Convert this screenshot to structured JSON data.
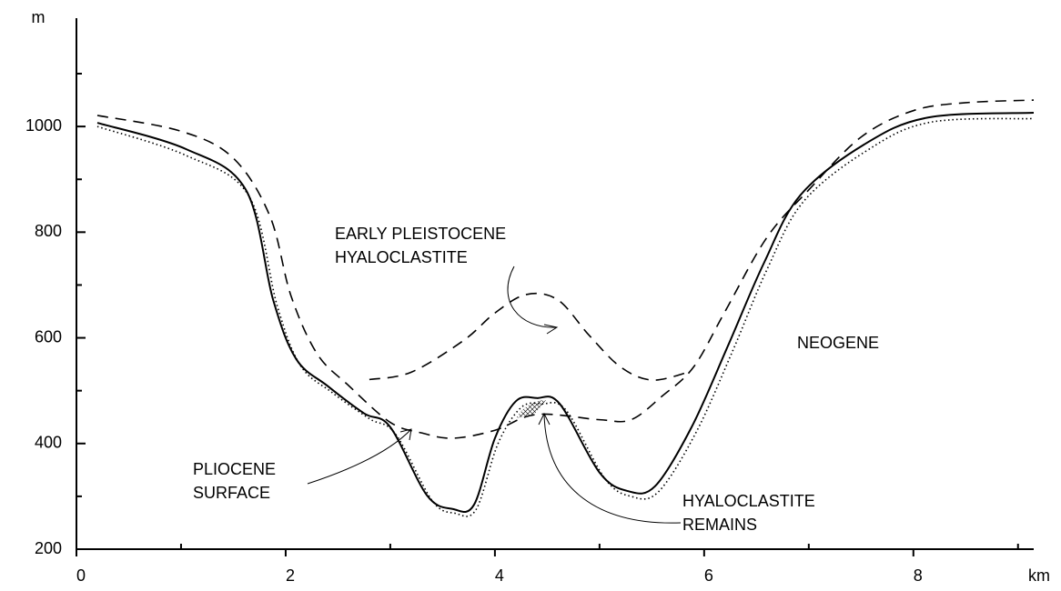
{
  "chart_data": {
    "type": "line",
    "x_label": "km",
    "y_label": "m",
    "xlim": [
      0,
      9.15
    ],
    "ylim": [
      200,
      1205
    ],
    "xticks": [
      0,
      2,
      4,
      6,
      8
    ],
    "xminorticks": [
      1,
      3,
      5,
      7,
      9
    ],
    "yticks": [
      200,
      400,
      600,
      800,
      1000
    ],
    "yminorticks": [
      300,
      500,
      700,
      900,
      1100
    ],
    "annotations": [
      "EARLY PLEISTOCENE",
      "HYALOCLASTITE",
      "NEOGENE",
      "PLIOCENE",
      "SURFACE",
      "HYALOCLASTITE",
      "REMAINS"
    ],
    "series": [
      {
        "style": "solid",
        "color": "#000000",
        "x": [
          0.2,
          1.05,
          1.62,
          1.88,
          2.1,
          2.4,
          2.75,
          3.0,
          3.35,
          3.6,
          3.8,
          4.0,
          4.2,
          4.4,
          4.62,
          5.0,
          5.27,
          5.53,
          5.88,
          6.23,
          6.57,
          6.92,
          7.53,
          8.14,
          9.15
        ],
        "values": [
          1007,
          957,
          880,
          672,
          560,
          509,
          457,
          431,
          302,
          276,
          284,
          410,
          480,
          486,
          475,
          345,
          310,
          319,
          431,
          586,
          741,
          870,
          966,
          1017,
          1026
        ]
      },
      {
        "style": "dotted",
        "color": "#000000",
        "x": [
          0.2,
          1.05,
          1.65,
          1.92,
          2.14,
          2.44,
          2.8,
          3.05,
          3.4,
          3.62,
          3.82,
          4.03,
          4.25,
          4.45,
          4.68,
          5.05,
          5.3,
          5.56,
          5.92,
          6.27,
          6.6,
          6.95,
          7.56,
          8.16,
          9.15
        ],
        "values": [
          1000,
          945,
          868,
          660,
          548,
          497,
          447,
          418,
          292,
          268,
          275,
          400,
          468,
          475,
          463,
          334,
          300,
          308,
          420,
          574,
          729,
          858,
          955,
          1008,
          1015
        ]
      },
      {
        "style": "dashed",
        "color": "#000000",
        "x": [
          0.2,
          1.0,
          1.5,
          1.85,
          2.05,
          2.3,
          2.6,
          3.0,
          3.3,
          3.6,
          4.0,
          4.4,
          5.0,
          5.3,
          5.6,
          5.9,
          6.2,
          6.6,
          7.0,
          7.5,
          8.0,
          8.5,
          9.15
        ],
        "values": [
          1021,
          991,
          940,
          830,
          680,
          570,
          510,
          440,
          420,
          410,
          425,
          455,
          445,
          445,
          490,
          545,
          650,
          790,
          880,
          980,
          1030,
          1045,
          1050
        ]
      },
      {
        "style": "dashed",
        "color": "#000000",
        "x": [
          2.8,
          3.2,
          3.7,
          4.0,
          4.3,
          4.6,
          4.9,
          5.2,
          5.5,
          5.85
        ],
        "values": [
          521,
          535,
          595,
          647,
          682,
          672,
          605,
          545,
          520,
          535
        ]
      }
    ]
  }
}
